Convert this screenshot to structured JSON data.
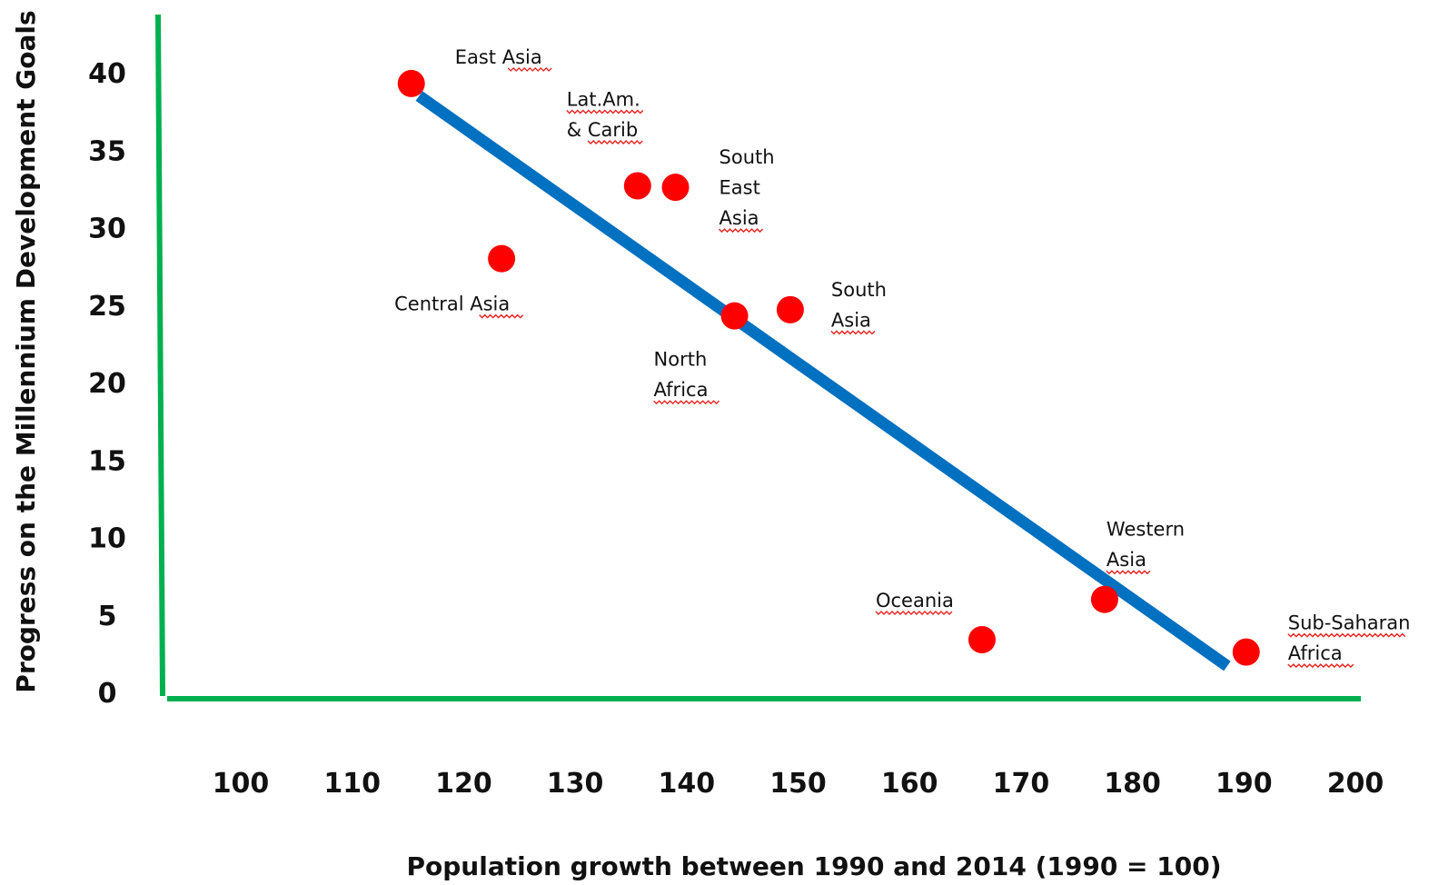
{
  "chart_data": {
    "type": "scatter",
    "title": "",
    "xlabel": "Population growth between 1990 and 2014 (1990 = 100)",
    "ylabel": "Progress on the Millennium Development Goals",
    "xlim": [
      93,
      205
    ],
    "ylim": [
      0,
      44
    ],
    "xticks": [
      100,
      110,
      120,
      130,
      140,
      150,
      160,
      170,
      180,
      190,
      200
    ],
    "yticks": [
      0,
      5,
      10,
      15,
      20,
      25,
      30,
      35,
      40
    ],
    "grid": false,
    "legend": "none",
    "colors": {
      "points": "#ff0000",
      "trendline": "#0070c0",
      "axes": "#00b050",
      "text": "#111111",
      "spellcheck": "#e8231f"
    },
    "points": [
      {
        "name": "East Asia",
        "label_lines": [
          "East Asia"
        ],
        "x": 115.3,
        "y": 39.3
      },
      {
        "name": "Central Asia",
        "label_lines": [
          "Central Asia"
        ],
        "x": 123.4,
        "y": 28.0
      },
      {
        "name": "Lat.Am. & Carib",
        "label_lines": [
          "Lat.Am.",
          "& Carib"
        ],
        "x": 135.6,
        "y": 32.7
      },
      {
        "name": "South East Asia",
        "label_lines": [
          "South",
          "East",
          "Asia"
        ],
        "x": 139.0,
        "y": 32.6
      },
      {
        "name": "North Africa",
        "label_lines": [
          "North",
          "Africa"
        ],
        "x": 144.3,
        "y": 24.3
      },
      {
        "name": "South Asia",
        "label_lines": [
          "South",
          "Asia"
        ],
        "x": 149.3,
        "y": 24.7
      },
      {
        "name": "Oceania",
        "label_lines": [
          "Oceania"
        ],
        "x": 166.5,
        "y": 3.4
      },
      {
        "name": "Western Asia",
        "label_lines": [
          "Western",
          "Asia"
        ],
        "x": 177.5,
        "y": 6.0
      },
      {
        "name": "Sub-Saharan Africa",
        "label_lines": [
          "Sub-Saharan",
          "Africa"
        ],
        "x": 190.2,
        "y": 2.6
      }
    ],
    "trendline": {
      "x": [
        116.0,
        188.5
      ],
      "y": [
        38.5,
        1.7
      ]
    }
  }
}
